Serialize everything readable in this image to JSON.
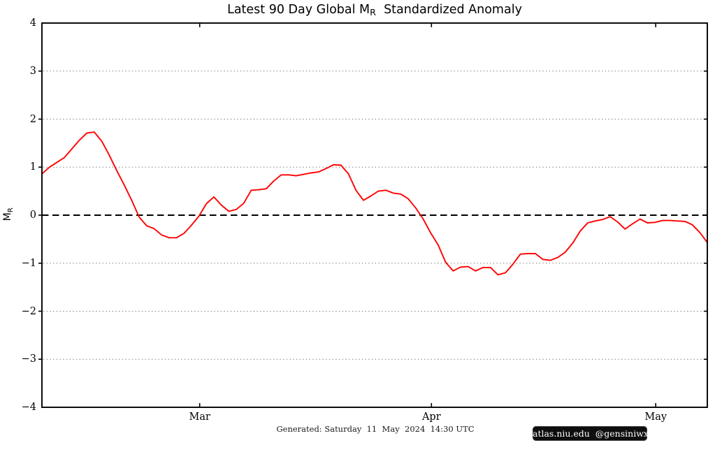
{
  "figure": {
    "title": {
      "prefix": "Latest 90 Day Global M",
      "sub": "R",
      "suffix": "  Standardized Anomaly"
    },
    "ylabel": {
      "prefix": "M",
      "sub": "R"
    },
    "footer": "Generated: Saturday  11  May  2024  14:30 UTC",
    "badge": "atlas.niu.edu  @gensiniwx",
    "colors": {
      "line": "#ff0000",
      "zero_line": "#000000",
      "grid": "#6f6f6f",
      "axis": "#000000",
      "badge_bg": "#0e0e0e",
      "badge_text": "#ffffff"
    }
  },
  "chart_data": {
    "type": "line",
    "title": "Latest 90 Day Global MR Standardized Anomaly",
    "xlabel": "",
    "ylabel": "MR",
    "ylim": [
      -4,
      4
    ],
    "x_days_span": 89,
    "grid": "dotted horizontal at integer y values",
    "legend": "none",
    "zero_line_y": 0,
    "grid_y": [
      3,
      2,
      1,
      -1,
      -2,
      -3
    ],
    "yticks": [
      {
        "v": 4,
        "label": "4"
      },
      {
        "v": 3,
        "label": "3"
      },
      {
        "v": 2,
        "label": "2"
      },
      {
        "v": 1,
        "label": "1"
      },
      {
        "v": 0,
        "label": "0"
      },
      {
        "v": -1,
        "label": "−1"
      },
      {
        "v": -2,
        "label": "−2"
      },
      {
        "v": -3,
        "label": "−3"
      },
      {
        "v": -4,
        "label": "−4"
      }
    ],
    "xticks": [
      {
        "day": 21.1,
        "label": "Mar"
      },
      {
        "day": 52.1,
        "label": "Apr"
      },
      {
        "day": 82.1,
        "label": "May"
      }
    ],
    "series": [
      {
        "name": "90-day standardized anomaly",
        "color": "#ff0000",
        "values": [
          0.86,
          1.0,
          1.1,
          1.2,
          1.38,
          1.56,
          1.71,
          1.73,
          1.54,
          1.25,
          0.93,
          0.63,
          0.31,
          -0.04,
          -0.22,
          -0.28,
          -0.41,
          -0.47,
          -0.47,
          -0.38,
          -0.21,
          -0.02,
          0.24,
          0.38,
          0.21,
          0.08,
          0.12,
          0.25,
          0.52,
          0.53,
          0.55,
          0.71,
          0.84,
          0.84,
          0.82,
          0.85,
          0.88,
          0.9,
          0.97,
          1.05,
          1.04,
          0.86,
          0.52,
          0.31,
          0.4,
          0.5,
          0.52,
          0.46,
          0.44,
          0.34,
          0.15,
          -0.08,
          -0.37,
          -0.62,
          -0.98,
          -1.16,
          -1.08,
          -1.07,
          -1.16,
          -1.09,
          -1.09,
          -1.24,
          -1.2,
          -1.02,
          -0.81,
          -0.8,
          -0.8,
          -0.92,
          -0.94,
          -0.88,
          -0.77,
          -0.58,
          -0.33,
          -0.16,
          -0.12,
          -0.09,
          -0.03,
          -0.14,
          -0.29,
          -0.18,
          -0.08,
          -0.16,
          -0.15,
          -0.11,
          -0.11,
          -0.12,
          -0.13,
          -0.2,
          -0.36,
          -0.57
        ]
      }
    ]
  }
}
